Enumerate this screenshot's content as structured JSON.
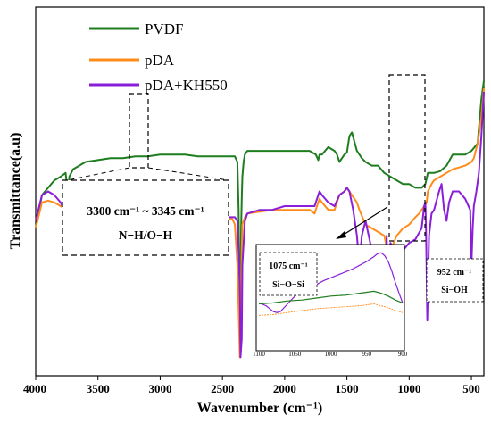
{
  "chart_data": {
    "type": "line",
    "xlabel": "Wavenumber (cm⁻¹)",
    "ylabel": "Transmittance(a.u)",
    "xlim": [
      4000,
      400
    ],
    "x_reversed": true,
    "y_ticks_shown": false,
    "grid": false,
    "legend_position": "top-center",
    "x_ticks": [
      4000,
      3500,
      3000,
      2500,
      2000,
      1500,
      1000,
      500
    ],
    "series": [
      {
        "name": "PVDF",
        "color": "#1e7d1e",
        "x": [
          4000,
          3950,
          3900,
          3850,
          3800,
          3760,
          3745,
          3730,
          3700,
          3650,
          3600,
          3500,
          3400,
          3300,
          3200,
          3100,
          3000,
          2900,
          2800,
          2700,
          2600,
          2500,
          2400,
          2380,
          2370,
          2360,
          2350,
          2345,
          2340,
          2330,
          2320,
          2310,
          2300,
          2200,
          2100,
          2000,
          1900,
          1800,
          1750,
          1730,
          1720,
          1700,
          1650,
          1600,
          1580,
          1560,
          1520,
          1500,
          1480,
          1460,
          1420,
          1400,
          1380,
          1350,
          1300,
          1250,
          1200,
          1150,
          1100,
          1050,
          1000,
          950,
          900,
          870,
          850,
          800,
          750,
          700,
          650,
          600,
          550,
          500,
          450,
          420,
          400
        ],
        "values": [
          40,
          49,
          51,
          53,
          54,
          55,
          50,
          54,
          56,
          57,
          58,
          58.5,
          59,
          59,
          59.5,
          59.5,
          60,
          60,
          60,
          59.5,
          59.5,
          59.5,
          59.5,
          58,
          45,
          10,
          40,
          48,
          54,
          58,
          60,
          60.5,
          61,
          61,
          61,
          61,
          61,
          61,
          60,
          58.5,
          60,
          60,
          62,
          61,
          60,
          58,
          60,
          60.5,
          65,
          66,
          61,
          60,
          59,
          58,
          57,
          57,
          55,
          54,
          53,
          52,
          52,
          51,
          51,
          52,
          55,
          55,
          55.5,
          57,
          60,
          60,
          60,
          61,
          63,
          75,
          80
        ]
      },
      {
        "name": "pDA",
        "color": "#ff8c1a",
        "x": [
          4000,
          3950,
          3900,
          3850,
          3800,
          3760,
          3745,
          3730,
          3700,
          3650,
          3600,
          3500,
          3400,
          3300,
          3200,
          3100,
          3000,
          2900,
          2800,
          2700,
          2600,
          2500,
          2420,
          2400,
          2380,
          2360,
          2350,
          2345,
          2340,
          2320,
          2300,
          2200,
          2100,
          2000,
          1900,
          1800,
          1760,
          1740,
          1720,
          1700,
          1650,
          1600,
          1560,
          1520,
          1500,
          1480,
          1420,
          1400,
          1350,
          1300,
          1250,
          1200,
          1180,
          1150,
          1100,
          1050,
          1000,
          950,
          920,
          900,
          880,
          860,
          850,
          820,
          800,
          750,
          700,
          650,
          600,
          550,
          500,
          480,
          450,
          420,
          400
        ],
        "values": [
          40,
          47,
          47.5,
          47,
          46,
          45,
          42,
          45,
          46,
          46,
          46,
          45.5,
          45,
          44.5,
          44,
          44,
          43.5,
          43.5,
          43,
          43,
          43,
          43,
          42.5,
          41,
          30,
          5,
          20,
          34,
          41,
          43,
          44,
          44.5,
          45,
          45,
          45,
          45,
          44,
          46,
          48,
          47,
          45,
          45,
          49,
          50,
          51,
          50,
          47,
          45,
          41,
          40,
          39,
          38,
          35,
          34,
          38,
          40,
          41,
          43,
          44,
          45,
          46,
          47,
          50,
          52,
          53,
          54,
          55,
          56,
          56.5,
          57,
          58,
          59,
          63,
          70,
          78
        ]
      },
      {
        "name": "pDA+KH550",
        "color": "#8a1fd9",
        "x": [
          4000,
          3950,
          3900,
          3850,
          3800,
          3760,
          3750,
          3740,
          3720,
          3700,
          3680,
          3650,
          3600,
          3500,
          3400,
          3300,
          3200,
          3100,
          3000,
          2900,
          2800,
          2700,
          2600,
          2500,
          2400,
          2380,
          2360,
          2355,
          2345,
          2340,
          2320,
          2300,
          2200,
          2100,
          2000,
          1900,
          1800,
          1760,
          1740,
          1720,
          1700,
          1650,
          1600,
          1560,
          1520,
          1500,
          1480,
          1450,
          1420,
          1400,
          1380,
          1350,
          1300,
          1280,
          1250,
          1200,
          1190,
          1180,
          1175,
          1150,
          1120,
          1100,
          1070,
          1050,
          1000,
          950,
          900,
          880,
          870,
          865,
          855,
          840,
          820,
          800,
          760,
          740,
          720,
          700,
          680,
          660,
          650,
          600,
          550,
          510,
          500,
          490,
          480,
          460,
          440,
          420,
          400
        ],
        "values": [
          42,
          49,
          50,
          49,
          47,
          44,
          40,
          44,
          41,
          40,
          43,
          46,
          45.5,
          45,
          44,
          43.5,
          43.5,
          43,
          43,
          43,
          43,
          43,
          43,
          43,
          43,
          42,
          25,
          5,
          10,
          30,
          42,
          44,
          45,
          45,
          46,
          46,
          46,
          46,
          48,
          50,
          49,
          47,
          46,
          49,
          50,
          51,
          50,
          45,
          38,
          30,
          38,
          42,
          34,
          25,
          35,
          12,
          28,
          38,
          25,
          36,
          34,
          32,
          33,
          34,
          36,
          37,
          40,
          46,
          47,
          40,
          15,
          38,
          44,
          45,
          50,
          52,
          45,
          42,
          47,
          49,
          50,
          50,
          48,
          45,
          30,
          40,
          46,
          50,
          55,
          65,
          77
        ]
      }
    ],
    "annotations": [
      {
        "text": "3300 cm⁻¹ ~ 3345 cm⁻¹",
        "region_x": [
          3370,
          3200
        ]
      },
      {
        "text": "N−H/O−H"
      }
    ],
    "inset": {
      "x_ticks": [
        1100,
        1050,
        1000,
        950,
        900
      ],
      "xlim": [
        1100,
        900
      ],
      "labels": [
        {
          "line1": "1075 cm⁻¹",
          "line2": "Si−O−Si"
        },
        {
          "line1": "952 cm⁻¹",
          "line2": "Si−OH"
        }
      ],
      "series": [
        {
          "name": "pDA+KH550",
          "color": "#8a1fd9",
          "x": [
            1100,
            1090,
            1080,
            1075,
            1070,
            1060,
            1050,
            1040,
            1030,
            1020,
            1010,
            1000,
            990,
            980,
            970,
            960,
            950,
            940,
            935,
            930,
            925,
            920,
            915,
            910,
            905,
            900
          ],
          "values": [
            45,
            42,
            36,
            35,
            36,
            44,
            52,
            57,
            61,
            64,
            68,
            71,
            74,
            77,
            80,
            84,
            88,
            93,
            96,
            97,
            94,
            88,
            78,
            66,
            55,
            45
          ]
        },
        {
          "name": "PVDF",
          "color": "#1e7d1e",
          "x": [
            1100,
            1080,
            1060,
            1040,
            1020,
            1000,
            980,
            960,
            950,
            940,
            930,
            920,
            910,
            900
          ],
          "values": [
            44,
            45,
            47,
            48,
            50,
            52,
            53,
            55,
            56,
            57,
            55,
            52,
            48,
            45
          ]
        },
        {
          "name": "pDA",
          "color": "#ff8c1a",
          "x": [
            1100,
            1080,
            1060,
            1040,
            1020,
            1000,
            980,
            960,
            950,
            940,
            930,
            920,
            910,
            900
          ],
          "values": [
            32,
            33,
            35,
            37,
            39,
            40,
            41,
            42,
            43,
            44,
            42,
            40,
            37,
            35
          ]
        }
      ]
    }
  }
}
